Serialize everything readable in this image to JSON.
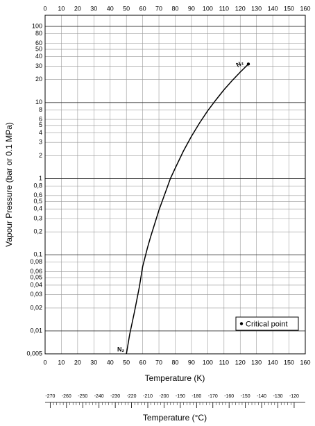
{
  "chart_data": {
    "type": "line",
    "ylabel": "Vapour Pressure (bar or 0.1 MPa)",
    "xlabel": "Temperature (K)",
    "x2label": "Temperature (°C)",
    "x": [
      50,
      52,
      55,
      58,
      60,
      63,
      65,
      70,
      75,
      77,
      80,
      85,
      90,
      95,
      100,
      105,
      110,
      115,
      120,
      125
    ],
    "series": [
      {
        "color": "#000000",
        "values": [
          0.005,
          0.009,
          0.018,
          0.038,
          0.07,
          0.125,
          0.175,
          0.386,
          0.76,
          1.0,
          1.37,
          2.29,
          3.6,
          5.4,
          7.8,
          10.8,
          14.7,
          19.4,
          25.1,
          32
        ]
      }
    ],
    "annotations": [
      "N₂",
      "N₂"
    ],
    "critical_point": {
      "name": "Critical point",
      "x": 125,
      "y": 32,
      "color": "#000000"
    },
    "legend": "lower right",
    "ylog": true,
    "grid": true,
    "xlim": [
      0,
      160
    ],
    "xticks": [
      0,
      10,
      20,
      30,
      40,
      50,
      60,
      70,
      80,
      90,
      100,
      110,
      120,
      130,
      140,
      150,
      160
    ],
    "ylim": [
      0.005,
      140
    ],
    "yticks": [
      100,
      80,
      60,
      50,
      40,
      30,
      20,
      10,
      8,
      6,
      5,
      4,
      3,
      2,
      1,
      {
        "value": 0.8,
        "label": "0,8"
      },
      {
        "value": 0.6,
        "label": "0,6"
      },
      {
        "value": 0.5,
        "label": "0,5"
      },
      {
        "value": 0.4,
        "label": "0,4"
      },
      {
        "value": 0.3,
        "label": "0,3"
      },
      {
        "value": 0.2,
        "label": "0,2"
      },
      {
        "value": 0.1,
        "label": "0,1"
      },
      {
        "value": 0.08,
        "label": "0,08"
      },
      {
        "value": 0.06,
        "label": "0,06"
      },
      {
        "value": 0.05,
        "label": "0,05"
      },
      {
        "value": 0.04,
        "label": "0,04"
      },
      {
        "value": 0.03,
        "label": "0,03"
      },
      {
        "value": 0.02,
        "label": "0,02"
      },
      {
        "value": 0.01,
        "label": "0,01"
      },
      {
        "value": 0.005,
        "label": "0,005"
      }
    ],
    "x2lim": [
      -273.15,
      -113.15
    ],
    "x2ticks": [
      -270,
      -260,
      -250,
      -240,
      -230,
      -220,
      -210,
      -200,
      -190,
      -180,
      -170,
      -160,
      -150,
      -140,
      -130,
      -120
    ]
  }
}
